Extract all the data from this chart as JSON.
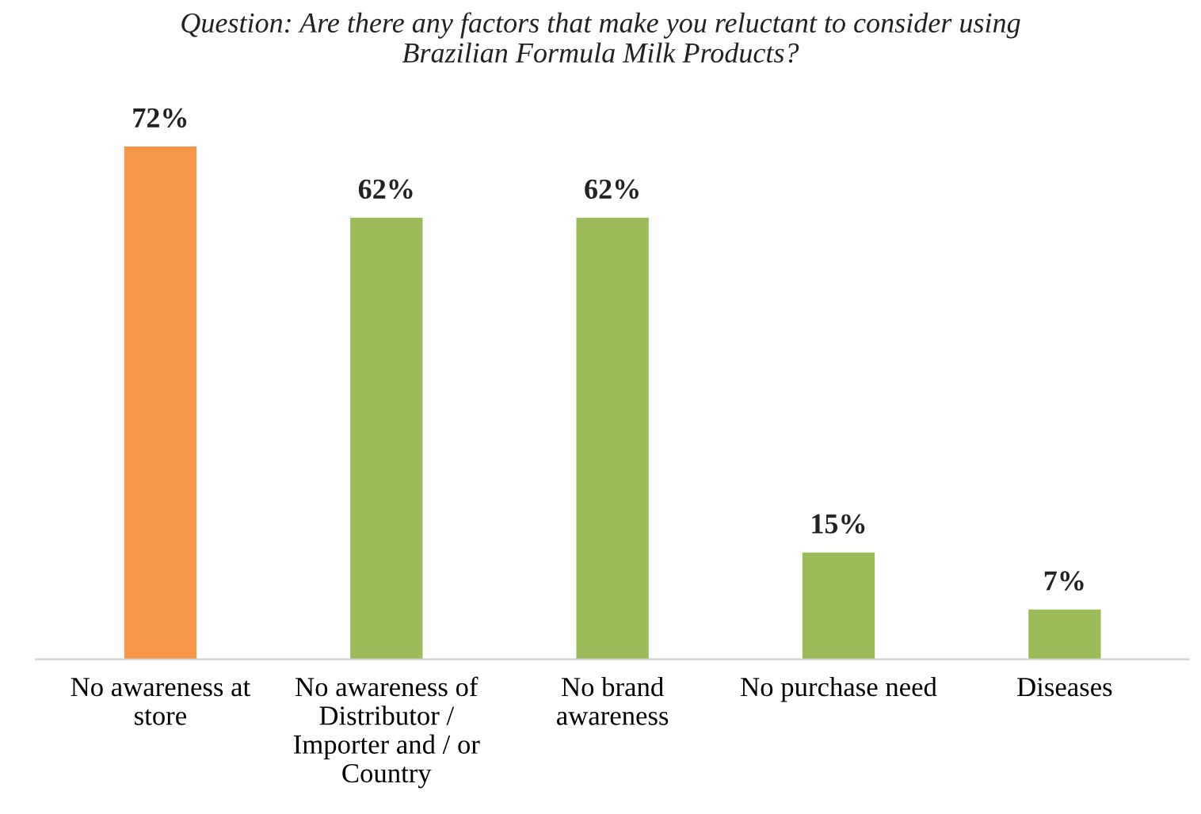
{
  "chart_data": {
    "type": "bar",
    "title": "Question: Are there any factors that make you reluctant to consider using\nBrazilian Formula Milk Products?",
    "categories": [
      "No awareness at\nstore",
      "No awareness of\nDistributor /\nImporter and / or\nCountry",
      "No brand\nawareness",
      "No purchase need",
      "Diseases"
    ],
    "values": [
      72,
      62,
      62,
      15,
      7
    ],
    "colors": [
      "#f79646",
      "#9bbb59",
      "#9bbb59",
      "#9bbb59",
      "#9bbb59"
    ],
    "value_labels": [
      "72%",
      "62%",
      "62%",
      "15%",
      "7%"
    ],
    "grid": false,
    "legend": false
  }
}
